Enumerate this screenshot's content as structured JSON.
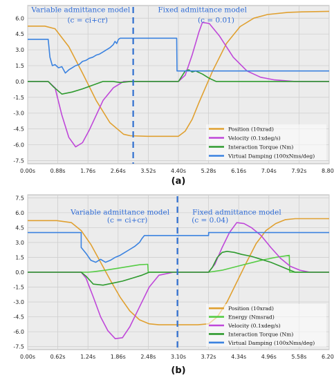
{
  "chart_data": [
    {
      "type": "line",
      "panel_label": "(a)",
      "x_ticks": [
        "0.00s",
        "0.88s",
        "1.76s",
        "2.64s",
        "3.52s",
        "4.40s",
        "5.28s",
        "6.16s",
        "7.04s",
        "7.92s",
        "8.80s"
      ],
      "y_ticks": [
        "6.0",
        "4.5",
        "3.0",
        "1.5",
        "0.0",
        "-1.5",
        "-3.0",
        "-4.5",
        "-6.0",
        "-7.5"
      ],
      "xlim": [
        0,
        8.8
      ],
      "ylim": [
        -7.8,
        7.2
      ],
      "grid": true,
      "legend": "bottom-right",
      "divider_x": 3.08,
      "annotations": [
        {
          "text": "Variable  admittance model",
          "x": 1.55,
          "y": 6.85
        },
        {
          "text": "(c = ci+cr)",
          "x": 1.75,
          "y": 5.85
        },
        {
          "text": "Fixed admittance model",
          "x": 5.1,
          "y": 6.85
        },
        {
          "text": "(c = 0.01)",
          "x": 5.5,
          "y": 5.85
        }
      ],
      "series": [
        {
          "name": "Position (10xrad)",
          "color": "#e0a030",
          "x": [
            0,
            0.5,
            0.8,
            1.2,
            1.6,
            2.0,
            2.4,
            2.8,
            3.0,
            3.5,
            4.0,
            4.4,
            4.6,
            4.8,
            5.0,
            5.4,
            5.8,
            6.2,
            6.6,
            7.0,
            7.6,
            8.0,
            8.8
          ],
          "y": [
            5.25,
            5.25,
            5.0,
            3.3,
            0.8,
            -1.8,
            -3.9,
            -5.0,
            -5.15,
            -5.2,
            -5.2,
            -5.2,
            -4.7,
            -3.6,
            -2.0,
            1.0,
            3.6,
            5.2,
            6.0,
            6.35,
            6.55,
            6.6,
            6.65
          ]
        },
        {
          "name": "Velocity (0.1xdeg/s)",
          "color": "#bf47d9",
          "x": [
            0,
            0.6,
            0.8,
            1.0,
            1.2,
            1.4,
            1.6,
            1.8,
            2.0,
            2.2,
            2.5,
            2.8,
            3.2,
            4.4,
            4.6,
            4.8,
            5.0,
            5.1,
            5.3,
            5.6,
            6.0,
            6.4,
            6.8,
            7.2,
            7.8,
            8.8
          ],
          "y": [
            0,
            0,
            -0.6,
            -3.2,
            -5.3,
            -6.2,
            -5.8,
            -4.6,
            -3.2,
            -1.8,
            -0.6,
            0,
            0,
            0,
            0.6,
            2.5,
            4.7,
            5.6,
            5.5,
            4.3,
            2.3,
            1.0,
            0.4,
            0.15,
            0,
            0
          ]
        },
        {
          "name": "Interaction Torque (Nm)",
          "color": "#2e9a2e",
          "x": [
            0,
            0.6,
            0.75,
            1.0,
            1.3,
            1.6,
            1.9,
            2.2,
            2.5,
            2.7,
            3.0,
            4.4,
            4.5,
            4.6,
            4.7,
            4.8,
            4.9,
            5.1,
            5.3,
            5.5,
            5.8,
            6.2,
            6.6,
            7.2,
            8.8
          ],
          "y": [
            0,
            0,
            -0.5,
            -1.2,
            -1.0,
            -0.7,
            -0.35,
            0,
            0,
            -0.1,
            0,
            0,
            0.5,
            1.0,
            1.1,
            0.9,
            1.0,
            0.7,
            0.3,
            0,
            0,
            0,
            0,
            0,
            0
          ]
        },
        {
          "name": "Virtual Damping (100xNms/deg)",
          "color": "#3a82e0",
          "x": [
            0,
            0.6,
            0.65,
            0.72,
            0.8,
            0.9,
            1.0,
            1.1,
            1.2,
            1.3,
            1.4,
            1.5,
            1.6,
            1.7,
            1.8,
            1.9,
            2.0,
            2.1,
            2.2,
            2.3,
            2.4,
            2.5,
            2.55,
            2.6,
            2.65,
            2.7,
            4.35,
            4.36,
            4.5,
            5.0,
            8.8
          ],
          "y": [
            4.0,
            4.0,
            2.3,
            1.5,
            1.6,
            1.3,
            1.4,
            0.8,
            1.1,
            1.3,
            1.5,
            1.6,
            1.9,
            2.0,
            2.2,
            2.3,
            2.5,
            2.6,
            2.8,
            3.0,
            3.2,
            3.5,
            3.8,
            3.6,
            4.0,
            4.1,
            4.1,
            1.0,
            1.0,
            1.0,
            1.0
          ]
        }
      ]
    },
    {
      "type": "line",
      "panel_label": "(b)",
      "x_ticks": [
        "0.00s",
        "0.62s",
        "1.24s",
        "1.86s",
        "2.48s",
        "3.10s",
        "3.72s",
        "4.34s",
        "4.96s",
        "5.58s",
        "6.20s"
      ],
      "y_ticks": [
        "7.5",
        "6.0",
        "4.5",
        "3.0",
        "1.5",
        "0.0",
        "-1.5",
        "-3.0",
        "-4.5",
        "-6.0",
        "-7.5"
      ],
      "xlim": [
        0,
        6.2
      ],
      "ylim": [
        -7.8,
        7.8
      ],
      "grid": true,
      "legend": "bottom-right",
      "divider_x": 3.08,
      "annotations": [
        {
          "text": "Variable admittance model",
          "x": 1.9,
          "y": 6.1
        },
        {
          "text": "(c = ci+cr)",
          "x": 2.05,
          "y": 5.3
        },
        {
          "text": "Fixed admittance model",
          "x": 4.3,
          "y": 6.1
        },
        {
          "text": "(c = 0.04)",
          "x": 3.75,
          "y": 5.3
        }
      ],
      "series": [
        {
          "name": "Position (10xrad)",
          "color": "#e0a030",
          "x": [
            0,
            0.6,
            0.9,
            1.1,
            1.3,
            1.5,
            1.7,
            1.9,
            2.1,
            2.3,
            2.5,
            2.7,
            3.0,
            3.5,
            3.72,
            3.9,
            4.1,
            4.3,
            4.5,
            4.7,
            4.9,
            5.1,
            5.3,
            5.5,
            5.8,
            6.2
          ],
          "y": [
            5.2,
            5.2,
            5.0,
            4.2,
            2.8,
            1.0,
            -0.8,
            -2.5,
            -3.9,
            -4.8,
            -5.2,
            -5.3,
            -5.3,
            -5.3,
            -5.2,
            -4.5,
            -3.0,
            -1.0,
            1.0,
            2.9,
            4.2,
            4.9,
            5.3,
            5.4,
            5.4,
            5.4
          ]
        },
        {
          "name": "Energy (Nmsrad)",
          "color": "#55cc44",
          "x": [
            0,
            1.24,
            1.35,
            1.6,
            1.85,
            2.1,
            2.3,
            2.47,
            2.48,
            3.6,
            3.72,
            4.0,
            4.4,
            4.8,
            5.1,
            5.38,
            5.39,
            6.2
          ],
          "y": [
            0,
            0,
            0.05,
            0.2,
            0.4,
            0.6,
            0.75,
            0.8,
            0,
            0,
            0,
            0.2,
            0.7,
            1.2,
            1.5,
            1.7,
            0,
            0
          ]
        },
        {
          "name": "Velocity (0.1xdeg/s)",
          "color": "#bf47d9",
          "x": [
            0,
            1.1,
            1.2,
            1.35,
            1.5,
            1.65,
            1.8,
            1.95,
            2.1,
            2.3,
            2.5,
            2.7,
            3.0,
            3.72,
            3.85,
            4.0,
            4.15,
            4.3,
            4.45,
            4.6,
            4.8,
            5.0,
            5.2,
            5.4,
            5.6,
            5.8,
            6.2
          ],
          "y": [
            0,
            0,
            -0.6,
            -2.5,
            -4.5,
            -5.9,
            -6.7,
            -6.6,
            -5.5,
            -3.5,
            -1.5,
            -0.3,
            0,
            0,
            0.8,
            2.5,
            4.0,
            5.0,
            4.9,
            4.5,
            3.7,
            2.5,
            1.4,
            0.6,
            0.2,
            0,
            0
          ]
        },
        {
          "name": "Interaction Torque (Nm)",
          "color": "#2e9a2e",
          "x": [
            0,
            1.1,
            1.2,
            1.35,
            1.55,
            1.75,
            1.95,
            2.15,
            2.35,
            2.5,
            2.6,
            3.72,
            3.8,
            3.9,
            4.0,
            4.1,
            4.25,
            4.4,
            4.6,
            4.8,
            5.0,
            5.2,
            5.35,
            5.5,
            5.7,
            6.2
          ],
          "y": [
            0,
            0,
            -0.4,
            -1.2,
            -1.3,
            -1.1,
            -0.9,
            -0.6,
            -0.3,
            0,
            0,
            0,
            0.5,
            1.5,
            2.0,
            2.1,
            2.0,
            1.8,
            1.6,
            1.3,
            1.0,
            0.6,
            0.3,
            0,
            0,
            0
          ]
        },
        {
          "name": "Virtual Damping (100xNms/deg)",
          "color": "#3a82e0",
          "x": [
            0,
            1.1,
            1.101,
            1.2,
            1.3,
            1.4,
            1.5,
            1.6,
            1.7,
            1.8,
            1.9,
            2.0,
            2.1,
            2.2,
            2.3,
            2.35,
            2.4,
            3.72,
            3.721,
            6.2
          ],
          "y": [
            4.0,
            4.0,
            2.5,
            1.9,
            1.2,
            1.0,
            1.3,
            1.0,
            1.2,
            1.5,
            1.7,
            2.0,
            2.3,
            2.6,
            3.0,
            3.4,
            3.7,
            3.7,
            4.0,
            4.0
          ]
        }
      ]
    }
  ]
}
